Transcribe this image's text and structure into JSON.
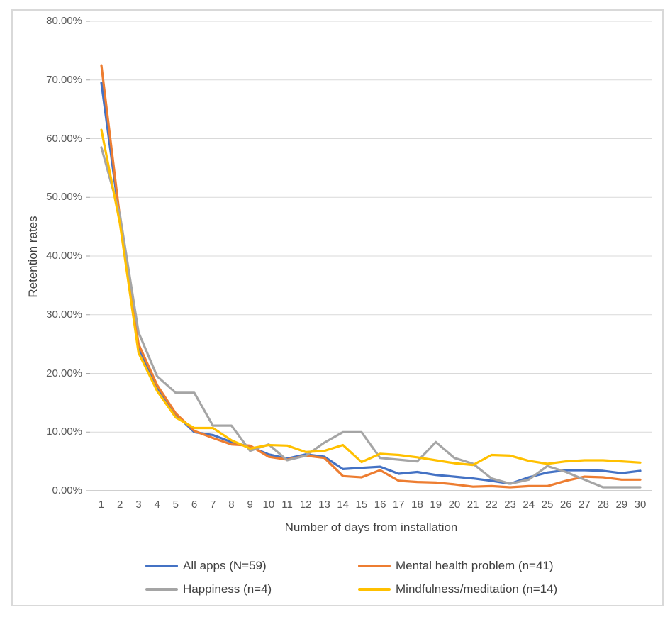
{
  "chart_data": {
    "type": "line",
    "title": "",
    "xlabel": "Number of days from installation",
    "ylabel": "Retention rates",
    "x": [
      1,
      2,
      3,
      4,
      5,
      6,
      7,
      8,
      9,
      10,
      11,
      12,
      13,
      14,
      15,
      16,
      17,
      18,
      19,
      20,
      21,
      22,
      23,
      24,
      25,
      26,
      27,
      28,
      29,
      30
    ],
    "x_tick_labels": [
      "1",
      "2",
      "3",
      "4",
      "5",
      "6",
      "7",
      "8",
      "9",
      "10",
      "11",
      "12",
      "13",
      "14",
      "15",
      "16",
      "17",
      "18",
      "19",
      "20",
      "21",
      "22",
      "23",
      "24",
      "25",
      "26",
      "27",
      "28",
      "29",
      "30"
    ],
    "y_tick_labels": [
      "80.00%",
      "70.00%",
      "60.00%",
      "50.00%",
      "40.00%",
      "30.00%",
      "20.00%",
      "10.00%",
      "0.00%"
    ],
    "ylim": [
      0,
      80
    ],
    "y_unit": "percent",
    "grid": "horizontal",
    "legend_position": "bottom",
    "colors": {
      "gridline": "#d9d9d9",
      "axis_line": "#bfbfbf",
      "tick_mark": "#a6a6a6",
      "tick_text": "#595959",
      "title_text": "#404040",
      "frame_border": "#d9d9d9",
      "background": "#ffffff"
    },
    "series": [
      {
        "name": "All apps (N=59)",
        "color": "#4472C4",
        "values": [
          69.5,
          46.0,
          24.5,
          17.5,
          13.0,
          10.0,
          9.5,
          8.3,
          7.5,
          6.2,
          5.5,
          6.2,
          5.8,
          3.7,
          3.9,
          4.1,
          2.9,
          3.2,
          2.7,
          2.4,
          2.1,
          1.7,
          1.2,
          2.3,
          3.1,
          3.5,
          3.5,
          3.4,
          3.0,
          3.4
        ]
      },
      {
        "name": "Mental health problem (n=41)",
        "color": "#ED7D31",
        "values": [
          72.5,
          46.5,
          25.0,
          18.0,
          13.2,
          10.2,
          9.0,
          7.9,
          7.7,
          5.8,
          5.3,
          6.0,
          5.6,
          2.5,
          2.3,
          3.5,
          1.7,
          1.5,
          1.4,
          1.1,
          0.7,
          0.8,
          0.6,
          0.8,
          0.8,
          1.7,
          2.4,
          2.3,
          1.9,
          1.9
        ]
      },
      {
        "name": "Happiness (n=4)",
        "color": "#A5A5A5",
        "values": [
          58.5,
          47.0,
          27.0,
          19.5,
          16.7,
          16.7,
          11.1,
          11.1,
          6.8,
          7.9,
          5.2,
          6.0,
          8.2,
          10.0,
          10.0,
          5.6,
          5.3,
          5.0,
          8.3,
          5.6,
          4.6,
          2.1,
          1.2,
          1.9,
          4.2,
          3.2,
          1.9,
          0.6,
          0.6,
          0.6
        ]
      },
      {
        "name": "Mindfulness/meditation (n=14)",
        "color": "#FFC000",
        "values": [
          61.5,
          45.5,
          23.5,
          17.0,
          12.5,
          10.7,
          10.7,
          8.6,
          7.2,
          7.8,
          7.7,
          6.6,
          6.8,
          7.8,
          4.9,
          6.3,
          6.1,
          5.7,
          5.2,
          4.7,
          4.4,
          6.1,
          6.0,
          5.1,
          4.6,
          5.0,
          5.2,
          5.2,
          5.0,
          4.8
        ]
      }
    ]
  }
}
